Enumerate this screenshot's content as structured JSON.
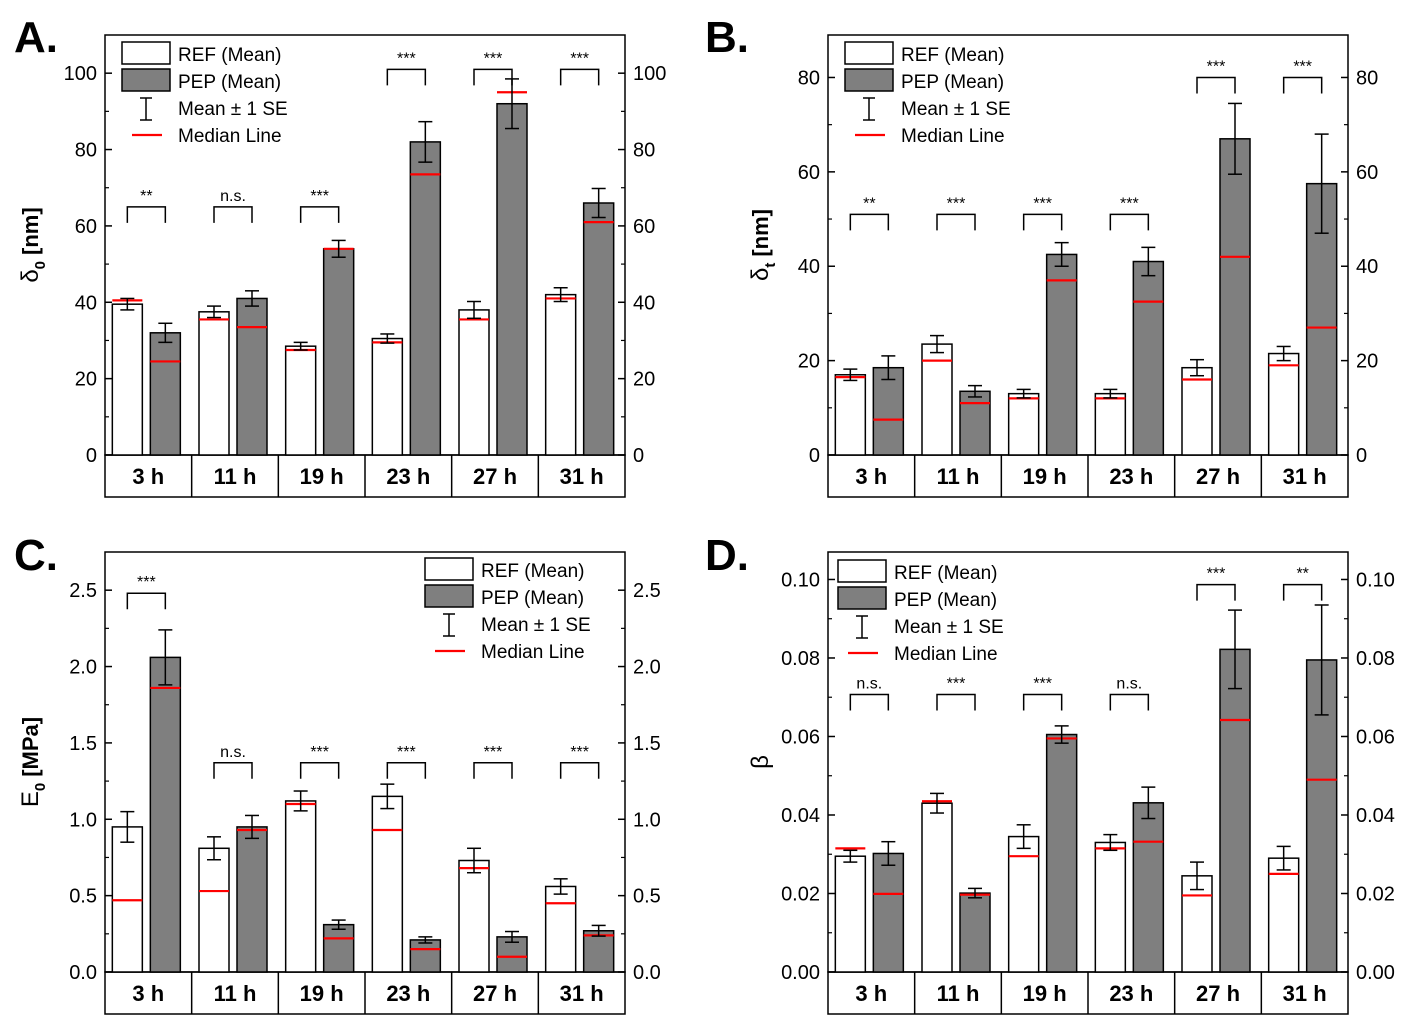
{
  "categories": [
    "3 h",
    "11 h",
    "19 h",
    "23 h",
    "27 h",
    "31 h"
  ],
  "legend": {
    "ref": "REF (Mean)",
    "pep": "PEP (Mean)",
    "se": "Mean ± 1 SE",
    "median": "Median Line"
  },
  "colors": {
    "ref": "#ffffff",
    "pep": "#7f7f7f",
    "median": "#ff0000",
    "axis": "#000000"
  },
  "chart_data": [
    {
      "type": "bar",
      "panel": "A.",
      "ylabel": "δ0 [nm]",
      "ylabel_symbol": "δ",
      "ylabel_sub": "0",
      "ylabel_unit": "[nm]",
      "ylim": [
        0,
        110
      ],
      "yticks": [
        0,
        20,
        40,
        60,
        80,
        100
      ],
      "ytick_labels": [
        "0",
        "20",
        "40",
        "60",
        "80",
        "100"
      ],
      "legend_position": "top-left",
      "categories": [
        "3 h",
        "11 h",
        "19 h",
        "23 h",
        "27 h",
        "31 h"
      ],
      "series": [
        {
          "name": "REF (Mean)",
          "values": [
            39.5,
            37.5,
            28.5,
            30.5,
            38,
            42
          ],
          "se": [
            1.5,
            1.5,
            1.0,
            1.2,
            2.2,
            1.8
          ],
          "median": [
            40.5,
            35.5,
            27.5,
            29.5,
            35.5,
            41
          ]
        },
        {
          "name": "PEP (Mean)",
          "values": [
            32,
            41,
            54,
            82,
            92,
            66
          ],
          "se": [
            2.5,
            2.0,
            2.2,
            5.3,
            6.5,
            3.8
          ],
          "median": [
            24.5,
            33.5,
            54,
            73.5,
            95,
            61
          ]
        }
      ],
      "significance": [
        "**",
        "n.s.",
        "***",
        "***",
        "***",
        "***"
      ],
      "significance_level": [
        65,
        65,
        65,
        101,
        101,
        101
      ]
    },
    {
      "type": "bar",
      "panel": "B.",
      "ylabel": "δt [nm]",
      "ylabel_symbol": "δ",
      "ylabel_sub": "t",
      "ylabel_unit": "[nm]",
      "ylim": [
        0,
        89
      ],
      "yticks": [
        0,
        20,
        40,
        60,
        80
      ],
      "ytick_labels": [
        "0",
        "20",
        "40",
        "60",
        "80"
      ],
      "legend_position": "top-left",
      "categories": [
        "3 h",
        "11 h",
        "19 h",
        "23 h",
        "27 h",
        "31 h"
      ],
      "series": [
        {
          "name": "REF (Mean)",
          "values": [
            17,
            23.5,
            13,
            13,
            18.5,
            21.5
          ],
          "se": [
            1.2,
            1.8,
            0.9,
            0.9,
            1.7,
            1.5
          ],
          "median": [
            16.5,
            20,
            12,
            12,
            16,
            19
          ]
        },
        {
          "name": "PEP (Mean)",
          "values": [
            18.5,
            13.5,
            42.5,
            41,
            67,
            57.5
          ],
          "se": [
            2.5,
            1.2,
            2.5,
            3.0,
            7.5,
            10.5
          ],
          "median": [
            7.5,
            11,
            37,
            32.5,
            42,
            27
          ]
        }
      ],
      "significance": [
        "**",
        "***",
        "***",
        "***",
        "***",
        "***"
      ],
      "significance_level": [
        51,
        51,
        51,
        51,
        80,
        80
      ]
    },
    {
      "type": "bar",
      "panel": "C.",
      "ylabel": "E0 [MPa]",
      "ylabel_symbol": "E",
      "ylabel_sub": "0",
      "ylabel_unit": "[MPa]",
      "ylim": [
        0,
        2.75
      ],
      "yticks": [
        0,
        0.5,
        1.0,
        1.5,
        2.0,
        2.5
      ],
      "ytick_labels": [
        "0.0",
        "0.5",
        "1.0",
        "1.5",
        "2.0",
        "2.5"
      ],
      "legend_position": "top-right",
      "categories": [
        "3 h",
        "11 h",
        "19 h",
        "23 h",
        "27 h",
        "31 h"
      ],
      "series": [
        {
          "name": "REF (Mean)",
          "values": [
            0.95,
            0.81,
            1.12,
            1.15,
            0.73,
            0.56
          ],
          "se": [
            0.1,
            0.075,
            0.065,
            0.08,
            0.08,
            0.05
          ],
          "median": [
            0.47,
            0.53,
            1.1,
            0.93,
            0.68,
            0.45
          ]
        },
        {
          "name": "PEP (Mean)",
          "values": [
            2.06,
            0.95,
            0.31,
            0.21,
            0.23,
            0.27
          ],
          "se": [
            0.18,
            0.075,
            0.03,
            0.02,
            0.035,
            0.035
          ],
          "median": [
            1.86,
            0.93,
            0.22,
            0.15,
            0.1,
            0.24
          ]
        }
      ],
      "significance": [
        "***",
        "n.s.",
        "***",
        "***",
        "***",
        "***"
      ],
      "significance_level": [
        2.48,
        1.37,
        1.37,
        1.37,
        1.37,
        1.37
      ]
    },
    {
      "type": "bar",
      "panel": "D.",
      "ylabel": "β",
      "ylabel_symbol": "β",
      "ylabel_sub": "",
      "ylabel_unit": "",
      "ylim": [
        0,
        0.107
      ],
      "yticks": [
        0,
        0.02,
        0.04,
        0.06,
        0.08,
        0.1
      ],
      "ytick_labels": [
        "0.00",
        "0.02",
        "0.04",
        "0.06",
        "0.08",
        "0.10"
      ],
      "legend_position": "top-left",
      "categories": [
        "3 h",
        "11 h",
        "19 h",
        "23 h",
        "27 h",
        "31 h"
      ],
      "series": [
        {
          "name": "REF (Mean)",
          "values": [
            0.0295,
            0.043,
            0.0345,
            0.033,
            0.0245,
            0.029
          ],
          "se": [
            0.0015,
            0.0025,
            0.003,
            0.002,
            0.0035,
            0.003
          ],
          "median": [
            0.0315,
            0.0435,
            0.0295,
            0.0315,
            0.0195,
            0.025
          ]
        },
        {
          "name": "PEP (Mean)",
          "values": [
            0.0302,
            0.0201,
            0.0605,
            0.0431,
            0.0822,
            0.0795
          ],
          "se": [
            0.003,
            0.0012,
            0.0022,
            0.004,
            0.01,
            0.014
          ],
          "median": [
            0.0199,
            0.0197,
            0.0595,
            0.0332,
            0.0642,
            0.049
          ]
        }
      ],
      "significance": [
        "n.s.",
        "***",
        "***",
        "n.s.",
        "***",
        "**"
      ],
      "significance_level": [
        0.0707,
        0.0707,
        0.0707,
        0.0707,
        0.0987,
        0.0987
      ]
    }
  ]
}
